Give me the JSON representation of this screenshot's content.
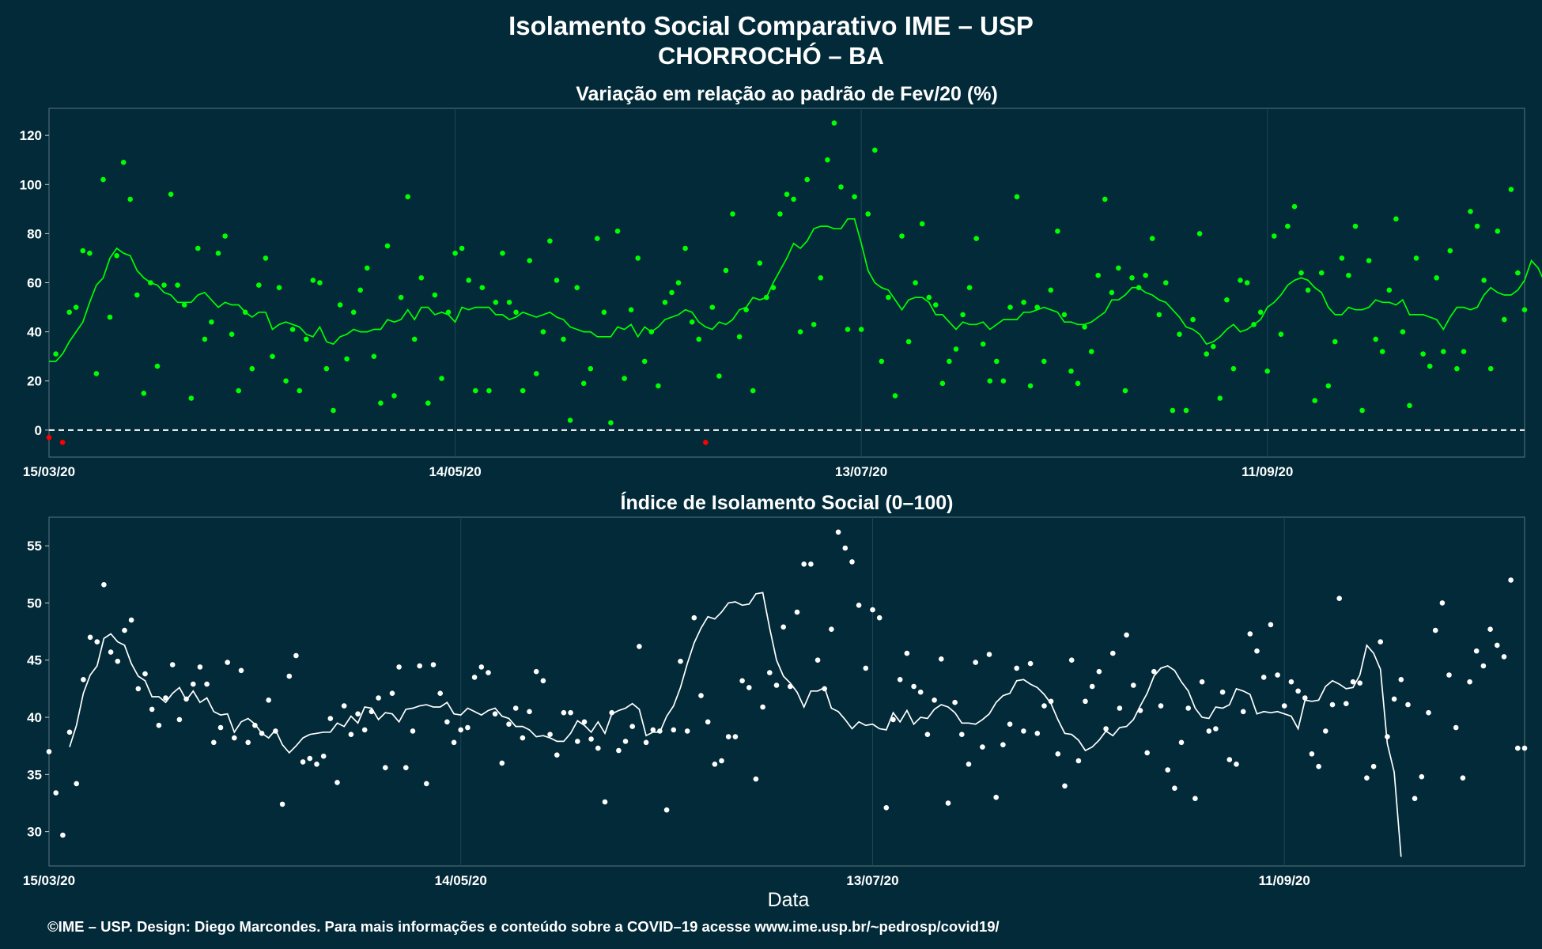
{
  "title": "Isolamento Social Comparativo IME – USP",
  "subtitle": "CHORROCHÓ – BA",
  "xlabel": "Data",
  "footer": "©IME – USP. Design: Diego Marcondes. Para mais informações e conteúdo sobre a COVID–19 acesse www.ime.usp.br/~pedrosp/covid19/",
  "colors": {
    "background": "#022a38",
    "green": "#00ff00",
    "red": "#ff0000",
    "white": "#ffffff"
  },
  "chart_data": [
    {
      "type": "scatter",
      "title": "Variação em relação ao padrão de Fev/20 (%)",
      "x_start": "2020-03-15",
      "x_end": "2020-10-31",
      "x_ticks": [
        "15/03/20",
        "14/05/20",
        "13/07/20",
        "11/09/20"
      ],
      "y_ticks": [
        0,
        20,
        40,
        60,
        80,
        100,
        120
      ],
      "ylim": [
        -11,
        131
      ],
      "reference_line": 0,
      "series": [
        {
          "kind": "points",
          "values": [
            -3,
            31,
            -5,
            48,
            50,
            73,
            72,
            23,
            102,
            46,
            71,
            109,
            94,
            55,
            15,
            60,
            26,
            59,
            96,
            59,
            51,
            13,
            74,
            37,
            44,
            72,
            79,
            39,
            16,
            48,
            25,
            59,
            70,
            30,
            58,
            20,
            41,
            16,
            37,
            61,
            60,
            25,
            8,
            51,
            29,
            48,
            57,
            66,
            30,
            11,
            75,
            14,
            54,
            95,
            37,
            62,
            11,
            55,
            21,
            48,
            72,
            74,
            61,
            16,
            58,
            16,
            52,
            72,
            52,
            48,
            16,
            69,
            23,
            40,
            77,
            61,
            37,
            4,
            58,
            19,
            25,
            78,
            48,
            3,
            81,
            21,
            49,
            70,
            28,
            40,
            18,
            52,
            56,
            60,
            74,
            44,
            37,
            -5,
            50,
            22,
            65,
            88,
            38,
            49,
            16,
            68,
            54,
            58,
            88,
            96,
            94,
            40,
            102,
            43,
            62,
            110,
            125,
            99,
            41,
            95,
            41,
            88,
            114,
            28,
            54,
            14,
            79,
            36,
            60,
            84,
            54,
            51,
            19,
            28,
            33,
            47,
            58,
            78,
            35,
            20,
            28,
            20,
            50,
            95,
            52,
            18,
            50,
            28,
            57,
            81,
            47,
            24,
            19,
            42,
            32,
            63,
            94,
            56,
            66,
            16,
            62,
            58,
            63,
            78,
            47,
            60,
            8,
            39,
            8,
            45,
            80,
            31,
            34,
            13,
            53,
            25,
            61,
            60,
            43,
            48,
            24,
            79,
            39,
            83,
            91,
            64,
            57,
            12,
            64,
            18,
            36,
            70,
            63,
            83,
            8,
            69,
            37,
            32,
            57,
            86,
            40,
            10,
            70,
            31,
            26,
            62,
            32,
            73,
            25,
            32,
            89,
            83,
            61,
            25,
            81,
            45,
            98,
            64,
            49
          ],
          "negative_color": "red"
        },
        {
          "kind": "line",
          "start_index": 0,
          "values": [
            28,
            28,
            31,
            36,
            40,
            44,
            52,
            59,
            62,
            70,
            74,
            72,
            71,
            65,
            62,
            60,
            59,
            56,
            55,
            52,
            52,
            52,
            55,
            56,
            53,
            50,
            52,
            51,
            51,
            48,
            46,
            48,
            48,
            41,
            43,
            44,
            43,
            42,
            39,
            38,
            42,
            36,
            35,
            38,
            39,
            41,
            40,
            40,
            41,
            41,
            45,
            44,
            45,
            49,
            45,
            50,
            50,
            47,
            48,
            47,
            44,
            50,
            49,
            50,
            50,
            50,
            47,
            47,
            45,
            46,
            48,
            47,
            46,
            47,
            48,
            46,
            45,
            42,
            41,
            40,
            40,
            38,
            38,
            38,
            42,
            41,
            43,
            38,
            42,
            40,
            42,
            45,
            46,
            47,
            49,
            48,
            44,
            42,
            41,
            44,
            43,
            45,
            49,
            50,
            54,
            53,
            54,
            60,
            65,
            70,
            76,
            74,
            77,
            82,
            83,
            83,
            82,
            82,
            86,
            86,
            76,
            65,
            60,
            58,
            57,
            53,
            49,
            53,
            54,
            54,
            52,
            47,
            47,
            44,
            41,
            44,
            43,
            43,
            44,
            41,
            43,
            45,
            45,
            45,
            48,
            48,
            49,
            50,
            49,
            48,
            44,
            44,
            43,
            43,
            44,
            46,
            48,
            53,
            53,
            55,
            58,
            58,
            56,
            55,
            53,
            52,
            49,
            46,
            42,
            41,
            39,
            35,
            36,
            38,
            41,
            43,
            40,
            41,
            43,
            45,
            50,
            52,
            55,
            59,
            61,
            62,
            61,
            58,
            56,
            50,
            47,
            47,
            50,
            49,
            49,
            50,
            53,
            52,
            52,
            51,
            53,
            47,
            47,
            47,
            46,
            45,
            41,
            46,
            50,
            50,
            49,
            50,
            55,
            58,
            56,
            55,
            55,
            57,
            61,
            69,
            66,
            60
          ]
        }
      ]
    },
    {
      "type": "scatter",
      "title": "Índice de Isolamento Social (0–100)",
      "x_start": "2020-03-15",
      "x_end": "2020-10-31",
      "x_ticks": [
        "15/03/20",
        "14/05/20",
        "13/07/20",
        "11/09/20"
      ],
      "y_ticks": [
        30,
        35,
        40,
        45,
        50,
        55
      ],
      "ylim": [
        27,
        57.5
      ],
      "series": [
        {
          "kind": "points",
          "values": [
            37,
            33.4,
            29.7,
            38.7,
            34.2,
            43.3,
            47,
            46.6,
            51.6,
            45.7,
            44.9,
            47.6,
            48.5,
            42.5,
            43.8,
            40.7,
            39.3,
            41.7,
            44.6,
            39.8,
            41.6,
            42.9,
            44.4,
            42.9,
            37.8,
            39.1,
            44.8,
            38.2,
            44.1,
            37.8,
            39.3,
            38.6,
            41.5,
            38.8,
            32.4,
            43.6,
            45.4,
            36.1,
            36.4,
            35.9,
            36.6,
            39.9,
            34.3,
            41,
            38.5,
            40.3,
            38.9,
            40.5,
            41.7,
            35.6,
            42.1,
            44.4,
            35.6,
            38.8,
            44.5,
            34.2,
            44.6,
            42.1,
            39.6,
            37.8,
            38.9,
            39.1,
            43.5,
            44.4,
            43.9,
            40.3,
            36,
            39.4,
            40.8,
            38.2,
            40.5,
            44,
            43.2,
            38.5,
            36.7,
            40.4,
            40.4,
            37.9,
            39.6,
            38.1,
            37.3,
            32.6,
            40.4,
            37.1,
            37.9,
            39.2,
            46.2,
            37.8,
            38.9,
            38.8,
            31.9,
            38.9,
            44.9,
            38.8,
            48.7,
            41.9,
            39.6,
            35.9,
            36.2,
            38.3,
            38.3,
            43.2,
            42.6,
            34.6,
            40.9,
            43.9,
            42.8,
            47.9,
            42.7,
            49.2,
            53.4,
            53.4,
            45,
            42.5,
            47.7,
            56.2,
            54.8,
            53.6,
            49.8,
            44.3,
            49.4,
            48.7,
            32.1,
            39.8,
            43.3,
            45.6,
            42.7,
            42.2,
            38.5,
            41.5,
            45.1,
            32.5,
            41.3,
            38.5,
            35.9,
            44.8,
            37.4,
            45.5,
            33,
            37.6,
            39.4,
            44.3,
            38.8,
            44.7,
            38.6,
            41,
            41.4,
            36.8,
            34,
            45,
            36.2,
            41.4,
            42.7,
            44,
            39,
            45.6,
            40.8,
            47.2,
            42.8,
            40.6,
            36.9,
            44,
            41,
            35.4,
            33.8,
            37.8,
            40.8,
            32.9,
            43.1,
            38.8,
            39,
            42.2,
            36.3,
            35.9,
            40.5,
            47.3,
            45.8,
            43.5,
            48.1,
            43.7,
            41,
            43.1,
            42.3,
            41.7,
            36.8,
            35.7,
            38.8,
            41.1,
            50.4,
            41.2,
            43.1,
            43,
            34.7,
            35.7,
            46.6,
            38.3,
            41.6,
            43.3,
            41.1,
            32.9,
            34.8,
            40.4,
            47.6,
            50,
            43.7,
            39.1,
            34.7,
            43.1,
            45.8,
            44.5,
            47.7,
            46.3,
            45.3,
            52,
            37.3,
            37.3
          ],
          "negative_color": null
        },
        {
          "kind": "line",
          "start_index": 3,
          "values": [
            37.4,
            39.3,
            42.1,
            43.7,
            44.5,
            46.9,
            47.3,
            46.6,
            46.3,
            44.7,
            43.6,
            43.2,
            41.8,
            41.8,
            41.3,
            42.1,
            42.6,
            41.5,
            42.3,
            41.3,
            41.7,
            40.5,
            40.2,
            40.3,
            38.7,
            39.6,
            39.9,
            39.4,
            38.6,
            38.2,
            38.9,
            37.6,
            36.9,
            37.5,
            38.2,
            38.5,
            38.6,
            38.7,
            38.7,
            39.5,
            39.2,
            40.1,
            39.5,
            40.9,
            40.8,
            39.8,
            40.4,
            40.3,
            39.6,
            40.7,
            40.8,
            41,
            41.1,
            40.9,
            40.9,
            41.3,
            40.3,
            40.2,
            40.8,
            40.5,
            40.2,
            40.6,
            40.8,
            40.1,
            39.9,
            39.2,
            39.2,
            38.9,
            38.3,
            38.4,
            38.2,
            37.9,
            37.9,
            38.6,
            39.7,
            39.3,
            38.7,
            39.6,
            38.6,
            40.3,
            40.6,
            40.8,
            41.2,
            40.7,
            38.4,
            38.7,
            38.7,
            40.1,
            41,
            42.6,
            44.7,
            46.5,
            47.8,
            48.8,
            48.6,
            49.2,
            50,
            50.1,
            49.8,
            49.9,
            50.8,
            50.9,
            47.8,
            45,
            43.6,
            43,
            42.2,
            40.9,
            42.3,
            42.3,
            42.6,
            40.8,
            40.5,
            39.8,
            39,
            39.6,
            39.3,
            39.4,
            39,
            38.9,
            40.4,
            39.6,
            40.6,
            39.4,
            40,
            39.9,
            40.7,
            41.1,
            40.9,
            40.4,
            39.5,
            39.5,
            39.4,
            39.8,
            40.3,
            41.3,
            41.9,
            42.1,
            43.2,
            43.3,
            42.9,
            42.6,
            42,
            41.2,
            39.8,
            38.6,
            38.5,
            38,
            37.1,
            37.4,
            38,
            38.8,
            38.4,
            39.1,
            39.2,
            39.8,
            41,
            42.1,
            43.6,
            44.3,
            44.5,
            44.1,
            43.1,
            42.3,
            40.8,
            40,
            39.9,
            40.9,
            40.8,
            41.1,
            42.5,
            42.3,
            42,
            40.3,
            40.5,
            40.4,
            40.5,
            40.3,
            40.1,
            39,
            41.5,
            41.4,
            41.5,
            42.7,
            43.2,
            42.9,
            42.5,
            42.6,
            43.7,
            46.3,
            45.6,
            44.2,
            37.7,
            35.2,
            27.8
          ]
        }
      ]
    }
  ]
}
